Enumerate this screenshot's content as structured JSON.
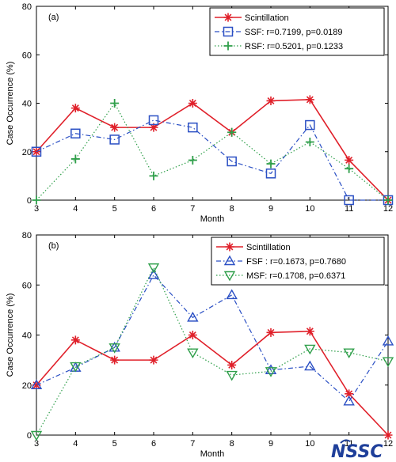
{
  "chart_data": [
    {
      "type": "line",
      "panel_label": "(a)",
      "xlabel": "Month",
      "ylabel": "Case Occurrence (%)",
      "xlim": [
        3,
        12
      ],
      "ylim": [
        0,
        80
      ],
      "x_ticks": [
        3,
        4,
        5,
        6,
        7,
        8,
        9,
        10,
        11,
        12
      ],
      "y_ticks": [
        0,
        20,
        40,
        60,
        80
      ],
      "legend_position": "top-right",
      "series": [
        {
          "name": "Scintillation",
          "color": "#e0202a",
          "marker": "star",
          "dash": "solid",
          "x": [
            3,
            4,
            5,
            6,
            7,
            8,
            9,
            10,
            11,
            12
          ],
          "y": [
            20,
            38,
            30,
            30,
            40,
            28,
            41,
            41.5,
            16.5,
            0
          ]
        },
        {
          "name": "SSF:  r=0.7199, p=0.0189",
          "color": "#2a4fc4",
          "marker": "square",
          "dash": "dashdot",
          "x": [
            3,
            4,
            5,
            6,
            7,
            8,
            9,
            10,
            11,
            12
          ],
          "y": [
            20,
            27.5,
            25,
            33,
            30,
            16,
            11,
            31,
            0,
            0
          ]
        },
        {
          "name": "RSF:  r=0.5201, p=0.1233",
          "color": "#2f9f4a",
          "marker": "plus",
          "dash": "dotted",
          "x": [
            3,
            4,
            5,
            6,
            7,
            8,
            9,
            10,
            11,
            12
          ],
          "y": [
            0,
            17,
            40,
            10,
            16.5,
            28,
            15,
            24,
            13,
            0
          ]
        }
      ]
    },
    {
      "type": "line",
      "panel_label": "(b)",
      "xlabel": "Month",
      "ylabel": "Case Occurrence (%)",
      "xlim": [
        3,
        12
      ],
      "ylim": [
        0,
        80
      ],
      "x_ticks": [
        3,
        4,
        5,
        6,
        7,
        8,
        9,
        10,
        11,
        12
      ],
      "y_ticks": [
        0,
        20,
        40,
        60,
        80
      ],
      "legend_position": "top-right",
      "series": [
        {
          "name": "Scintillation",
          "color": "#e0202a",
          "marker": "star",
          "dash": "solid",
          "x": [
            3,
            4,
            5,
            6,
            7,
            8,
            9,
            10,
            11,
            12
          ],
          "y": [
            20,
            38,
            30,
            30,
            40,
            28,
            41,
            41.5,
            16.5,
            0
          ]
        },
        {
          "name": "FSF :  r=0.1673, p=0.7680",
          "color": "#2a4fc4",
          "marker": "triangle-up",
          "dash": "dashdot",
          "x": [
            3,
            4,
            5,
            6,
            7,
            8,
            9,
            10,
            11,
            12
          ],
          "y": [
            20,
            27,
            35,
            64,
            47,
            56,
            26,
            27.5,
            13.5,
            37.5
          ]
        },
        {
          "name": "MSF:  r=0.1708, p=0.6371",
          "color": "#2f9f4a",
          "marker": "triangle-down",
          "dash": "dotted",
          "x": [
            3,
            4,
            5,
            6,
            7,
            8,
            9,
            10,
            11,
            12
          ],
          "y": [
            0,
            27.5,
            35,
            67,
            33,
            24,
            25.5,
            34.5,
            33,
            29.5
          ]
        }
      ]
    }
  ],
  "watermark": {
    "text": "NSSC",
    "color": "#1f3f9a"
  }
}
